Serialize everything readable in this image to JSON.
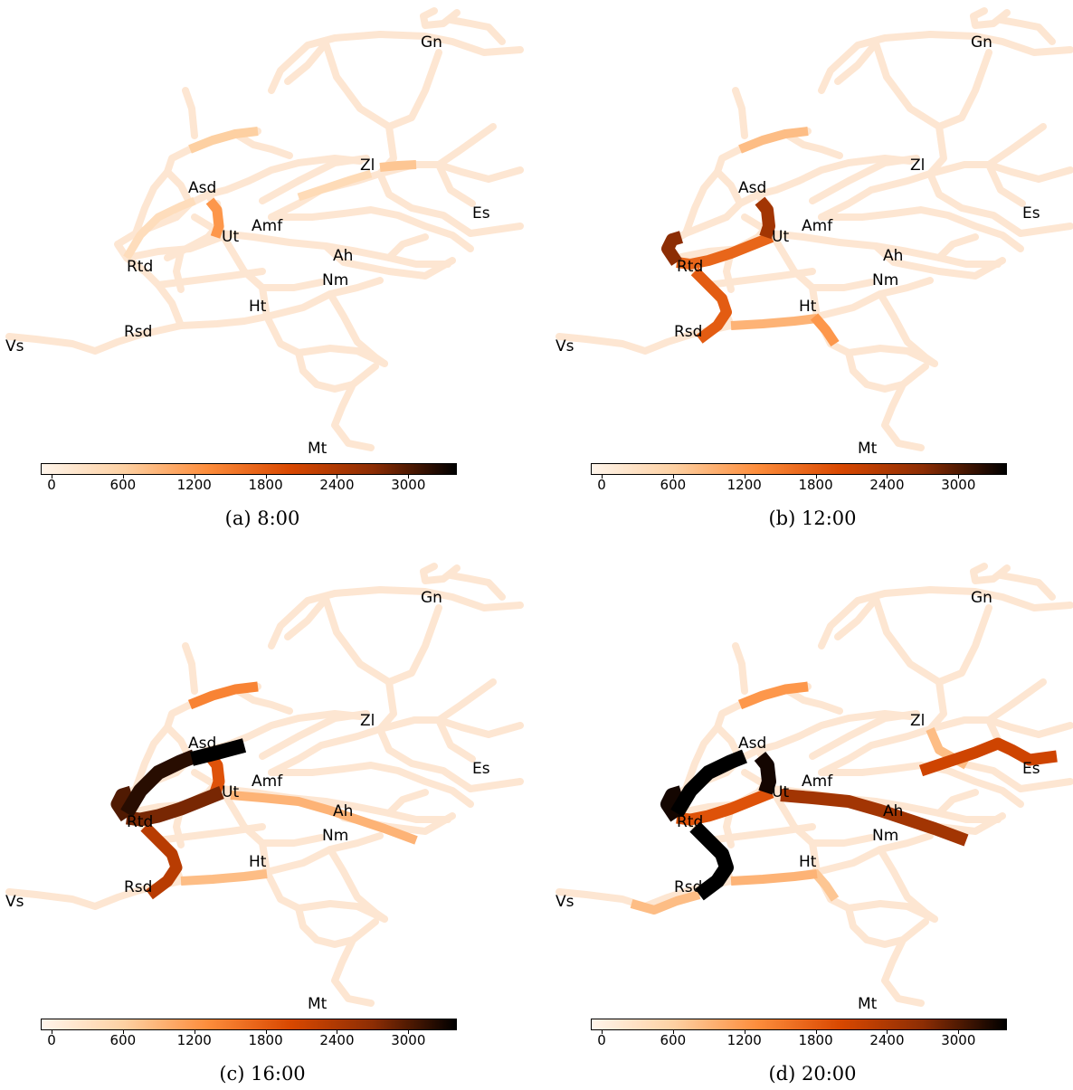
{
  "figure": {
    "cities": [
      "Gn",
      "Zl",
      "Asd",
      "Es",
      "Amf",
      "Ut",
      "Ah",
      "Rtd",
      "Nm",
      "Ht",
      "Rsd",
      "Vs",
      "Mt"
    ],
    "colorbar": {
      "ticks": [
        "0",
        "600",
        "1200",
        "1800",
        "2400",
        "3000"
      ],
      "range": [
        0,
        3500
      ],
      "colormap": [
        "#fff5eb",
        "#fdd0a2",
        "#fd8d3c",
        "#d94801",
        "#8c2d04",
        "#000000"
      ]
    },
    "panels": [
      {
        "caption": "(a) 8:00",
        "hot": [
          {
            "edge": "Asd-Ut",
            "value": 1300
          },
          {
            "edge": "Asd-top",
            "value": 700
          },
          {
            "edge": "Zl-Amf",
            "value": 500
          },
          {
            "edge": "Zl-east",
            "value": 800
          },
          {
            "edge": "Rtd-Asd",
            "value": 450
          }
        ]
      },
      {
        "caption": "(b) 12:00",
        "hot": [
          {
            "edge": "Asd-Ut",
            "value": 2600
          },
          {
            "edge": "Ut-Rtd",
            "value": 1800
          },
          {
            "edge": "Rtd-Rsd",
            "value": 1900
          },
          {
            "edge": "Rsd-Ht",
            "value": 1000
          },
          {
            "edge": "Ht-south",
            "value": 1300
          },
          {
            "edge": "Asd-top",
            "value": 900
          },
          {
            "edge": "Rtd-west",
            "value": 2800
          }
        ]
      },
      {
        "caption": "(c) 16:00",
        "hot": [
          {
            "edge": "Asd-Ut",
            "value": 2000
          },
          {
            "edge": "Asd-east",
            "value": 3500
          },
          {
            "edge": "Rtd-Asd",
            "value": 3300
          },
          {
            "edge": "Ut-Rtd",
            "value": 2900
          },
          {
            "edge": "Rtd-Rsd",
            "value": 2400
          },
          {
            "edge": "Ut-Ah",
            "value": 1000
          },
          {
            "edge": "Rsd-Ht",
            "value": 900
          },
          {
            "edge": "Asd-top",
            "value": 1500
          },
          {
            "edge": "Rtd-west",
            "value": 3100
          }
        ]
      },
      {
        "caption": "(d) 20:00",
        "hot": [
          {
            "edge": "Asd-Ut",
            "value": 3400
          },
          {
            "edge": "Rtd-Asd",
            "value": 3500
          },
          {
            "edge": "Rtd-Rsd",
            "value": 3500
          },
          {
            "edge": "Ut-Ah",
            "value": 2600
          },
          {
            "edge": "Amf-Es",
            "value": 2200
          },
          {
            "edge": "Ut-Rtd",
            "value": 2000
          },
          {
            "edge": "Rsd-Vs",
            "value": 900
          },
          {
            "edge": "Rsd-Ht",
            "value": 1000
          },
          {
            "edge": "Asd-top",
            "value": 1300
          },
          {
            "edge": "Ah-Zl-east",
            "value": 900
          },
          {
            "edge": "Ht-south",
            "value": 800
          },
          {
            "edge": "Rtd-west",
            "value": 3400
          }
        ]
      }
    ]
  }
}
